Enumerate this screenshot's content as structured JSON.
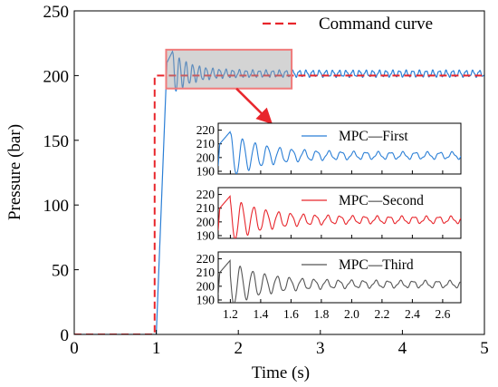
{
  "chart_data": {
    "type": "line",
    "main": {
      "xlabel": "Time (s)",
      "ylabel": "Pressure (bar)",
      "xlim": [
        0,
        5
      ],
      "ylim": [
        0,
        250
      ],
      "xticks": [
        0,
        1,
        2,
        3,
        4,
        5
      ],
      "yticks": [
        0,
        50,
        100,
        150,
        200,
        250
      ],
      "legend": {
        "label": "Command curve",
        "placement": "top-right",
        "color": "#e8262c"
      },
      "command_curve": [
        [
          0,
          0
        ],
        [
          0.98,
          0
        ],
        [
          0.98,
          200
        ],
        [
          5,
          200
        ]
      ],
      "response_curve": {
        "color": "#2b7fd6",
        "rise_start": 1.0,
        "rise_end": 1.13,
        "peak_time": 1.2,
        "peak_value": 219,
        "settle_value": 201.5
      },
      "highlight_box": {
        "x_range": [
          1.12,
          2.65
        ],
        "y_range": [
          190,
          220
        ],
        "color": "#f07a7a"
      }
    },
    "insets": [
      {
        "name": "MPC—First",
        "color": "#2b7fd6",
        "ylim": [
          188,
          225
        ],
        "yticks": [
          190,
          200,
          210,
          220
        ]
      },
      {
        "name": "MPC—Second",
        "color": "#e8262c",
        "ylim": [
          188,
          225
        ],
        "yticks": [
          190,
          200,
          210,
          220
        ]
      },
      {
        "name": "MPC—Third",
        "color": "#555555",
        "ylim": [
          188,
          225
        ],
        "yticks": [
          190,
          200,
          210,
          220
        ]
      }
    ],
    "inset_xlim": [
      1.12,
      2.72
    ],
    "inset_xticks": [
      1.2,
      1.4,
      1.6,
      1.8,
      2.0,
      2.2,
      2.4,
      2.6
    ]
  }
}
